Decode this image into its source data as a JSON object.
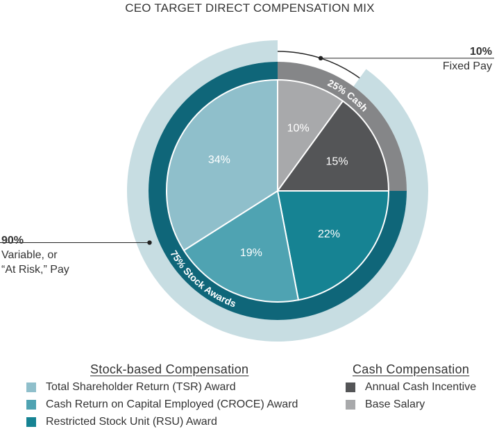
{
  "chart_data": {
    "type": "pie",
    "title": "CEO TARGET DIRECT COMPENSATION MIX",
    "slices": [
      {
        "label": "Base Salary",
        "value": 10,
        "display": "10%",
        "color": "#a8a9ab",
        "group": "cash"
      },
      {
        "label": "Annual Cash Incentive",
        "value": 15,
        "display": "15%",
        "color": "#545557",
        "group": "cash"
      },
      {
        "label": "Restricted Stock Unit (RSU) Award",
        "value": 22,
        "display": "22%",
        "color": "#168393",
        "group": "stock"
      },
      {
        "label": "Cash Return on Capital Employed (CROCE) Award",
        "value": 19,
        "display": "19%",
        "color": "#4fa3b2",
        "group": "stock"
      },
      {
        "label": "Total Shareholder Return (TSR) Award",
        "value": 34,
        "display": "34%",
        "color": "#8fbfcb",
        "group": "stock"
      }
    ],
    "inner_ring": [
      {
        "label": "25% Cash",
        "value": 25,
        "color": "#858688"
      },
      {
        "label": "75% Stock Awards",
        "value": 75,
        "color": "#0f6679"
      }
    ],
    "outer_ring": [
      {
        "label": "Fixed Pay",
        "value": 10
      },
      {
        "label": "Variable, or “At Risk,” Pay",
        "value": 90,
        "color": "#c7dde2"
      }
    ]
  },
  "callouts": {
    "fixed_pct": "10%",
    "fixed_label": "Fixed Pay",
    "variable_pct": "90%",
    "variable_line1": "Variable, or",
    "variable_line2": "“At Risk,” Pay"
  },
  "legend": {
    "stock_heading": "Stock-based Compensation",
    "cash_heading": "Cash Compensation",
    "stock_items": [
      {
        "label": "Total Shareholder Return (TSR) Award",
        "color": "#8fbfcb"
      },
      {
        "label": "Cash Return on Capital Employed (CROCE) Award",
        "color": "#4fa3b2"
      },
      {
        "label": "Restricted Stock Unit (RSU) Award",
        "color": "#168393"
      }
    ],
    "cash_items": [
      {
        "label": "Annual Cash Incentive",
        "color": "#545557"
      },
      {
        "label": "Base Salary",
        "color": "#a8a9ab"
      }
    ]
  }
}
